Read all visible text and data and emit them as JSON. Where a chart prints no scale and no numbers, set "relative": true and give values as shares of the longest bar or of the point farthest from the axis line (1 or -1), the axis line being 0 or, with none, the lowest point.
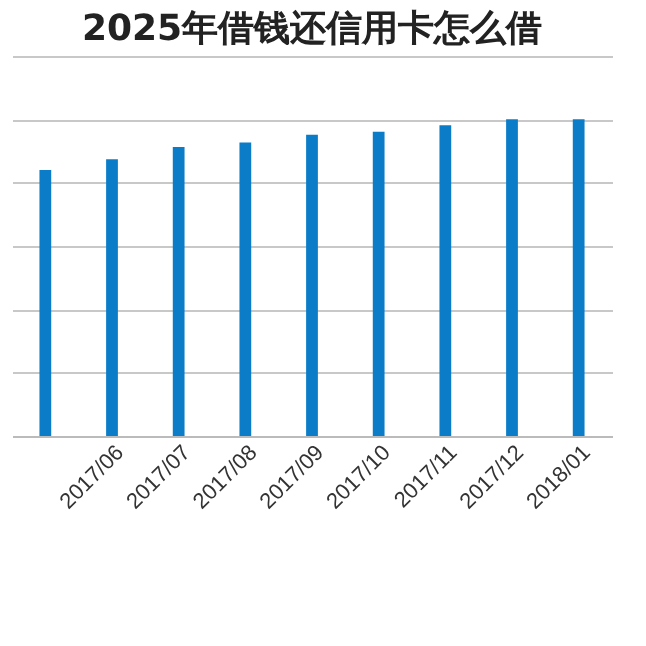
{
  "chart_data": {
    "type": "bar",
    "title": "2025年借钱还信用卡怎么借",
    "categories": [
      null,
      "2017/06",
      "2017/07",
      "2017/08",
      "2017/09",
      "2017/10",
      "2017/11",
      "2017/12",
      "2018/01"
    ],
    "values": [
      0.84,
      0.874,
      0.913,
      0.927,
      0.951,
      0.961,
      0.981,
      1,
      1
    ],
    "color": "#0a7cc8",
    "relative": true,
    "grid": "y"
  }
}
